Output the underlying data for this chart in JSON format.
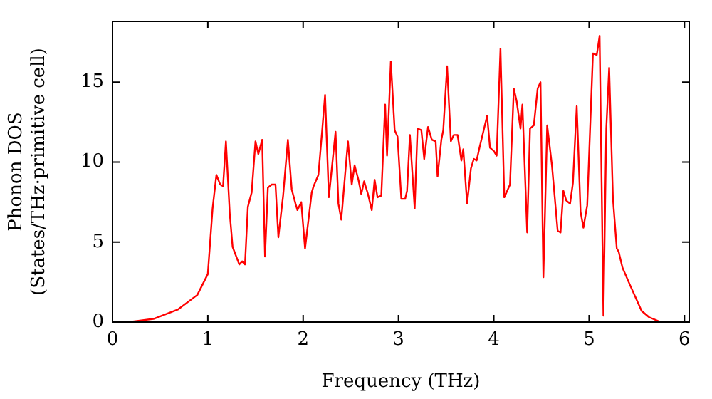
{
  "chart_data": {
    "type": "line",
    "xlabel": "Frequency (THz)",
    "ylabel": "Phonon DOS\n(States/THz·primitive cell)",
    "xlim": [
      0,
      6.05
    ],
    "ylim": [
      0,
      18.8
    ],
    "xticks": [
      0,
      1,
      2,
      3,
      4,
      5,
      6
    ],
    "yticks": [
      0,
      5,
      10,
      15
    ],
    "grid": false,
    "legend": false,
    "marker": "none",
    "line_style": "solid",
    "series": [
      {
        "color": "#ff0000",
        "x": [
          0,
          0.2,
          0.43,
          0.69,
          0.89,
          1.0,
          1.05,
          1.09,
          1.13,
          1.16,
          1.19,
          1.23,
          1.26,
          1.33,
          1.36,
          1.39,
          1.42,
          1.46,
          1.5,
          1.53,
          1.57,
          1.6,
          1.63,
          1.67,
          1.71,
          1.74,
          1.79,
          1.84,
          1.88,
          1.92,
          1.94,
          1.98,
          2.02,
          2.09,
          2.11,
          2.16,
          2.2,
          2.23,
          2.27,
          2.34,
          2.37,
          2.4,
          2.47,
          2.51,
          2.54,
          2.58,
          2.61,
          2.64,
          2.68,
          2.72,
          2.75,
          2.78,
          2.82,
          2.86,
          2.88,
          2.92,
          2.96,
          2.99,
          3.03,
          3.07,
          3.09,
          3.12,
          3.17,
          3.2,
          3.24,
          3.27,
          3.31,
          3.35,
          3.39,
          3.41,
          3.45,
          3.47,
          3.51,
          3.55,
          3.58,
          3.62,
          3.66,
          3.68,
          3.72,
          3.76,
          3.79,
          3.82,
          3.85,
          3.93,
          3.96,
          4.0,
          4.03,
          4.07,
          4.11,
          4.17,
          4.21,
          4.24,
          4.28,
          4.3,
          4.35,
          4.38,
          4.42,
          4.46,
          4.49,
          4.52,
          4.56,
          4.61,
          4.67,
          4.7,
          4.73,
          4.76,
          4.8,
          4.83,
          4.87,
          4.91,
          4.94,
          4.98,
          5.04,
          5.08,
          5.11,
          5.15,
          5.18,
          5.21,
          5.25,
          5.29,
          5.31,
          5.35,
          5.43,
          5.49,
          5.55,
          5.63,
          5.73,
          5.85
        ],
        "values": [
          0,
          0.03,
          0.2,
          0.8,
          1.7,
          3.0,
          7.1,
          9.2,
          8.6,
          8.5,
          11.3,
          6.8,
          4.7,
          3.6,
          3.8,
          3.6,
          7.2,
          8.1,
          11.3,
          10.5,
          11.4,
          4.1,
          8.4,
          8.6,
          8.6,
          5.3,
          7.9,
          11.4,
          8.3,
          7.4,
          7.0,
          7.5,
          4.6,
          8.1,
          8.5,
          9.2,
          12.0,
          14.2,
          7.8,
          11.9,
          7.4,
          6.4,
          11.3,
          8.6,
          9.8,
          8.9,
          8.0,
          8.8,
          8.0,
          7.0,
          8.9,
          7.8,
          7.9,
          13.6,
          10.4,
          16.3,
          12.0,
          11.6,
          7.7,
          7.7,
          8.2,
          11.7,
          7.1,
          12.1,
          12.0,
          10.2,
          12.2,
          11.4,
          11.3,
          9.1,
          11.4,
          12.0,
          16.0,
          11.3,
          11.7,
          11.7,
          10.1,
          10.8,
          7.4,
          9.6,
          10.2,
          10.1,
          10.9,
          12.9,
          10.9,
          10.7,
          10.4,
          17.1,
          7.8,
          8.6,
          14.6,
          13.8,
          12.1,
          13.6,
          5.6,
          12.1,
          12.3,
          14.6,
          15.0,
          2.8,
          12.3,
          9.8,
          5.7,
          5.6,
          8.2,
          7.6,
          7.4,
          8.7,
          13.5,
          6.9,
          5.9,
          7.3,
          16.8,
          16.7,
          17.9,
          0.4,
          12.1,
          15.9,
          7.7,
          4.6,
          4.4,
          3.4,
          2.3,
          1.5,
          0.7,
          0.3,
          0.05,
          0
        ]
      }
    ]
  }
}
